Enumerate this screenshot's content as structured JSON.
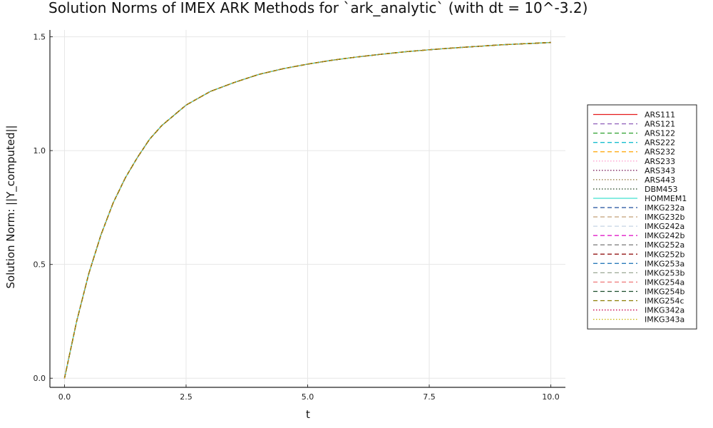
{
  "chart_data": {
    "type": "line",
    "title": "Solution Norms of IMEX ARK Methods for `ark_analytic` (with dt = 10^-3.2)",
    "xlabel": "t",
    "ylabel": "Solution Norm: ||Y_computed||",
    "xlim": [
      -0.3,
      10.3
    ],
    "ylim": [
      -0.04,
      1.53
    ],
    "xticks": [
      0.0,
      2.5,
      5.0,
      7.5,
      10.0
    ],
    "xtick_labels": [
      "0.0",
      "2.5",
      "5.0",
      "7.5",
      "10.0"
    ],
    "yticks": [
      0.0,
      0.5,
      1.0,
      1.5
    ],
    "ytick_labels": [
      "0.0",
      "0.5",
      "1.0",
      "1.5"
    ],
    "grid": true,
    "legend_position": "right",
    "x": [
      0.0,
      0.25,
      0.5,
      0.75,
      1.0,
      1.25,
      1.5,
      1.75,
      2.0,
      2.5,
      3.0,
      3.5,
      4.0,
      4.5,
      5.0,
      5.5,
      6.0,
      6.5,
      7.0,
      7.5,
      8.0,
      8.5,
      9.0,
      9.5,
      10.0
    ],
    "series": [
      {
        "name": "ARS111",
        "color": "#e41a1c",
        "style": "solid",
        "values": [
          0.0,
          0.25,
          0.46,
          0.63,
          0.77,
          0.88,
          0.97,
          1.05,
          1.11,
          1.2,
          1.26,
          1.3,
          1.335,
          1.36,
          1.38,
          1.397,
          1.411,
          1.423,
          1.434,
          1.443,
          1.451,
          1.458,
          1.465,
          1.47,
          1.475
        ]
      },
      {
        "name": "ARS121",
        "color": "#9467bd",
        "style": "dash",
        "values": [
          0.0,
          0.25,
          0.46,
          0.63,
          0.77,
          0.88,
          0.97,
          1.05,
          1.11,
          1.2,
          1.26,
          1.3,
          1.335,
          1.36,
          1.38,
          1.397,
          1.411,
          1.423,
          1.434,
          1.443,
          1.451,
          1.458,
          1.465,
          1.47,
          1.475
        ]
      },
      {
        "name": "ARS122",
        "color": "#2ca02c",
        "style": "dash",
        "values": [
          0.0,
          0.25,
          0.46,
          0.63,
          0.77,
          0.88,
          0.97,
          1.05,
          1.11,
          1.2,
          1.26,
          1.3,
          1.335,
          1.36,
          1.38,
          1.397,
          1.411,
          1.423,
          1.434,
          1.443,
          1.451,
          1.458,
          1.465,
          1.47,
          1.475
        ]
      },
      {
        "name": "ARS222",
        "color": "#17becf",
        "style": "dash",
        "values": [
          0.0,
          0.25,
          0.46,
          0.63,
          0.77,
          0.88,
          0.97,
          1.05,
          1.11,
          1.2,
          1.26,
          1.3,
          1.335,
          1.36,
          1.38,
          1.397,
          1.411,
          1.423,
          1.434,
          1.443,
          1.451,
          1.458,
          1.465,
          1.47,
          1.475
        ]
      },
      {
        "name": "ARS232",
        "color": "#ffa500",
        "style": "dash",
        "values": [
          0.0,
          0.25,
          0.46,
          0.63,
          0.77,
          0.88,
          0.97,
          1.05,
          1.11,
          1.2,
          1.26,
          1.3,
          1.335,
          1.36,
          1.38,
          1.397,
          1.411,
          1.423,
          1.434,
          1.443,
          1.451,
          1.458,
          1.465,
          1.47,
          1.475
        ]
      },
      {
        "name": "ARS233",
        "color": "#ff99cc",
        "style": "dot",
        "values": [
          0.0,
          0.25,
          0.46,
          0.63,
          0.77,
          0.88,
          0.97,
          1.05,
          1.11,
          1.2,
          1.26,
          1.3,
          1.335,
          1.36,
          1.38,
          1.397,
          1.411,
          1.423,
          1.434,
          1.443,
          1.451,
          1.458,
          1.465,
          1.47,
          1.475
        ]
      },
      {
        "name": "ARS343",
        "color": "#7b1f5e",
        "style": "dot",
        "values": [
          0.0,
          0.25,
          0.46,
          0.63,
          0.77,
          0.88,
          0.97,
          1.05,
          1.11,
          1.2,
          1.26,
          1.3,
          1.335,
          1.36,
          1.38,
          1.397,
          1.411,
          1.423,
          1.434,
          1.443,
          1.451,
          1.458,
          1.465,
          1.47,
          1.475
        ]
      },
      {
        "name": "ARS443",
        "color": "#8c6d31",
        "style": "dot",
        "values": [
          0.0,
          0.25,
          0.46,
          0.63,
          0.77,
          0.88,
          0.97,
          1.05,
          1.11,
          1.2,
          1.26,
          1.3,
          1.335,
          1.36,
          1.38,
          1.397,
          1.411,
          1.423,
          1.434,
          1.443,
          1.451,
          1.458,
          1.465,
          1.47,
          1.475
        ]
      },
      {
        "name": "DBM453",
        "color": "#2f4f2f",
        "style": "dot",
        "values": [
          0.0,
          0.25,
          0.46,
          0.63,
          0.77,
          0.88,
          0.97,
          1.05,
          1.11,
          1.2,
          1.26,
          1.3,
          1.335,
          1.36,
          1.38,
          1.397,
          1.411,
          1.423,
          1.434,
          1.443,
          1.451,
          1.458,
          1.465,
          1.47,
          1.475
        ]
      },
      {
        "name": "HOMMEM1",
        "color": "#40e0d0",
        "style": "solid",
        "values": [
          0.0,
          0.25,
          0.46,
          0.63,
          0.77,
          0.88,
          0.97,
          1.05,
          1.11,
          1.2,
          1.26,
          1.3,
          1.335,
          1.36,
          1.38,
          1.397,
          1.411,
          1.423,
          1.434,
          1.443,
          1.451,
          1.458,
          1.465,
          1.47,
          1.475
        ]
      },
      {
        "name": "IMKG232a",
        "color": "#1f4e9c",
        "style": "dash",
        "values": [
          0.0,
          0.25,
          0.46,
          0.63,
          0.77,
          0.88,
          0.97,
          1.05,
          1.11,
          1.2,
          1.26,
          1.3,
          1.335,
          1.36,
          1.38,
          1.397,
          1.411,
          1.423,
          1.434,
          1.443,
          1.451,
          1.458,
          1.465,
          1.47,
          1.475
        ]
      },
      {
        "name": "IMKG232b",
        "color": "#c8a882",
        "style": "dash",
        "values": [
          0.0,
          0.25,
          0.46,
          0.63,
          0.77,
          0.88,
          0.97,
          1.05,
          1.11,
          1.2,
          1.26,
          1.3,
          1.335,
          1.36,
          1.38,
          1.397,
          1.411,
          1.423,
          1.434,
          1.443,
          1.451,
          1.458,
          1.465,
          1.47,
          1.475
        ]
      },
      {
        "name": "IMKG242a",
        "color": "#c6d4e4",
        "style": "dash",
        "values": [
          0.0,
          0.25,
          0.46,
          0.63,
          0.77,
          0.88,
          0.97,
          1.05,
          1.11,
          1.2,
          1.26,
          1.3,
          1.335,
          1.36,
          1.38,
          1.397,
          1.411,
          1.423,
          1.434,
          1.443,
          1.451,
          1.458,
          1.465,
          1.47,
          1.475
        ]
      },
      {
        "name": "IMKG242b",
        "color": "#e01ec8",
        "style": "dash",
        "values": [
          0.0,
          0.25,
          0.46,
          0.63,
          0.77,
          0.88,
          0.97,
          1.05,
          1.11,
          1.2,
          1.26,
          1.3,
          1.335,
          1.36,
          1.38,
          1.397,
          1.411,
          1.423,
          1.434,
          1.443,
          1.451,
          1.458,
          1.465,
          1.47,
          1.475
        ]
      },
      {
        "name": "IMKG252a",
        "color": "#777777",
        "style": "dash",
        "values": [
          0.0,
          0.25,
          0.46,
          0.63,
          0.77,
          0.88,
          0.97,
          1.05,
          1.11,
          1.2,
          1.26,
          1.3,
          1.335,
          1.36,
          1.38,
          1.397,
          1.411,
          1.423,
          1.434,
          1.443,
          1.451,
          1.458,
          1.465,
          1.47,
          1.475
        ]
      },
      {
        "name": "IMKG252b",
        "color": "#8b0000",
        "style": "dash",
        "values": [
          0.0,
          0.25,
          0.46,
          0.63,
          0.77,
          0.88,
          0.97,
          1.05,
          1.11,
          1.2,
          1.26,
          1.3,
          1.335,
          1.36,
          1.38,
          1.397,
          1.411,
          1.423,
          1.434,
          1.443,
          1.451,
          1.458,
          1.465,
          1.47,
          1.475
        ]
      },
      {
        "name": "IMKG253a",
        "color": "#2b7bba",
        "style": "dash",
        "values": [
          0.0,
          0.25,
          0.46,
          0.63,
          0.77,
          0.88,
          0.97,
          1.05,
          1.11,
          1.2,
          1.26,
          1.3,
          1.335,
          1.36,
          1.38,
          1.397,
          1.411,
          1.423,
          1.434,
          1.443,
          1.451,
          1.458,
          1.465,
          1.47,
          1.475
        ]
      },
      {
        "name": "IMKG253b",
        "color": "#9aa894",
        "style": "dash",
        "values": [
          0.0,
          0.25,
          0.46,
          0.63,
          0.77,
          0.88,
          0.97,
          1.05,
          1.11,
          1.2,
          1.26,
          1.3,
          1.335,
          1.36,
          1.38,
          1.397,
          1.411,
          1.423,
          1.434,
          1.443,
          1.451,
          1.458,
          1.465,
          1.47,
          1.475
        ]
      },
      {
        "name": "IMKG254a",
        "color": "#f08080",
        "style": "dash",
        "values": [
          0.0,
          0.25,
          0.46,
          0.63,
          0.77,
          0.88,
          0.97,
          1.05,
          1.11,
          1.2,
          1.26,
          1.3,
          1.335,
          1.36,
          1.38,
          1.397,
          1.411,
          1.423,
          1.434,
          1.443,
          1.451,
          1.458,
          1.465,
          1.47,
          1.475
        ]
      },
      {
        "name": "IMKG254b",
        "color": "#1b4d2b",
        "style": "dash",
        "values": [
          0.0,
          0.25,
          0.46,
          0.63,
          0.77,
          0.88,
          0.97,
          1.05,
          1.11,
          1.2,
          1.26,
          1.3,
          1.335,
          1.36,
          1.38,
          1.397,
          1.411,
          1.423,
          1.434,
          1.443,
          1.451,
          1.458,
          1.465,
          1.47,
          1.475
        ]
      },
      {
        "name": "IMKG254c",
        "color": "#8b7d00",
        "style": "dash",
        "values": [
          0.0,
          0.25,
          0.46,
          0.63,
          0.77,
          0.88,
          0.97,
          1.05,
          1.11,
          1.2,
          1.26,
          1.3,
          1.335,
          1.36,
          1.38,
          1.397,
          1.411,
          1.423,
          1.434,
          1.443,
          1.451,
          1.458,
          1.465,
          1.47,
          1.475
        ]
      },
      {
        "name": "IMKG342a",
        "color": "#c8004a",
        "style": "dot",
        "values": [
          0.0,
          0.25,
          0.46,
          0.63,
          0.77,
          0.88,
          0.97,
          1.05,
          1.11,
          1.2,
          1.26,
          1.3,
          1.335,
          1.36,
          1.38,
          1.397,
          1.411,
          1.423,
          1.434,
          1.443,
          1.451,
          1.458,
          1.465,
          1.47,
          1.475
        ]
      },
      {
        "name": "IMKG343a",
        "color": "#c8b400",
        "style": "dot",
        "values": [
          0.0,
          0.25,
          0.46,
          0.63,
          0.77,
          0.88,
          0.97,
          1.05,
          1.11,
          1.2,
          1.26,
          1.3,
          1.335,
          1.36,
          1.38,
          1.397,
          1.411,
          1.423,
          1.434,
          1.443,
          1.451,
          1.458,
          1.465,
          1.47,
          1.475
        ]
      }
    ]
  }
}
